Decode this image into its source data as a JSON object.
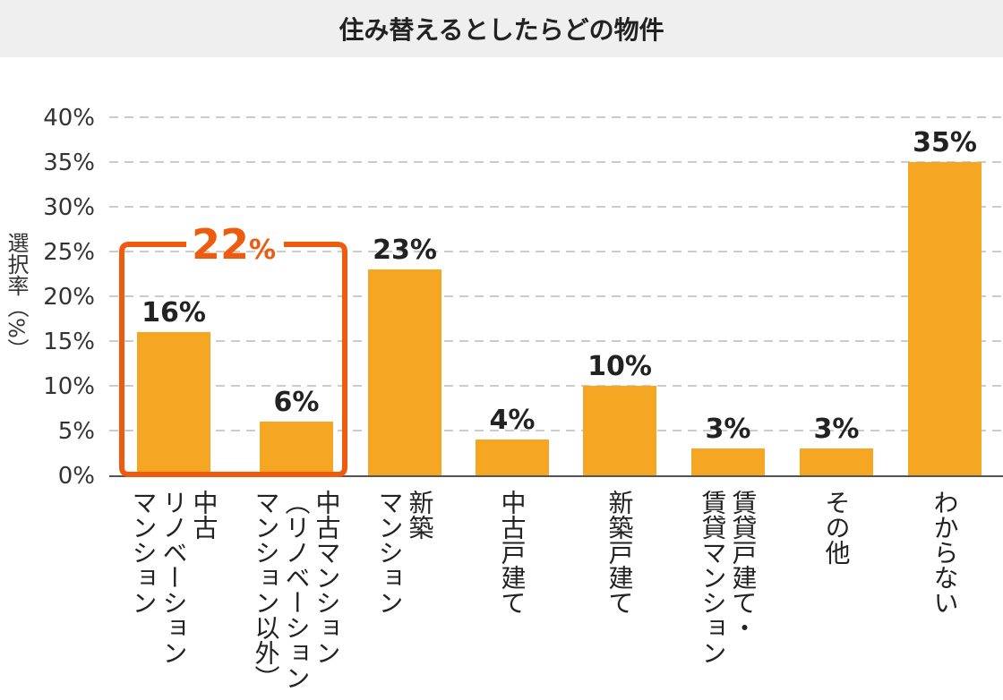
{
  "title": "住み替えるとしたらどの物件",
  "colors": {
    "bar": "#f5a623",
    "highlight": "#ee5a0e",
    "grid": "#cccccc",
    "axis": "#555555"
  },
  "chart_data": {
    "type": "bar",
    "title": "住み替えるとしたらどの物件",
    "xlabel": "",
    "ylabel": "選択率（%）",
    "ylim": [
      0,
      40
    ],
    "yticks": [
      0,
      5,
      10,
      15,
      20,
      25,
      30,
      35,
      40
    ],
    "ytick_labels": [
      "0%",
      "5%",
      "10%",
      "15%",
      "20%",
      "25%",
      "30%",
      "35%",
      "40%"
    ],
    "grid": true,
    "categories": [
      [
        "中古",
        "リノベーション",
        "マンション"
      ],
      [
        "中古マンション",
        "（リノベーション",
        "マンション以外）"
      ],
      [
        "新築",
        "マンション"
      ],
      [
        "中古戸建て"
      ],
      [
        "新築戸建て"
      ],
      [
        "賃貸戸建て・",
        "賃貸マンション"
      ],
      [
        "その他"
      ],
      [
        "わからない"
      ]
    ],
    "values": [
      16,
      6,
      23,
      4,
      10,
      3,
      3,
      35
    ],
    "value_labels": [
      "16%",
      "6%",
      "23%",
      "4%",
      "10%",
      "3%",
      "3%",
      "35%"
    ],
    "annotation": {
      "label_number": "22",
      "label_unit": "%",
      "value": 22,
      "bracket_categories": [
        0,
        1
      ]
    }
  }
}
